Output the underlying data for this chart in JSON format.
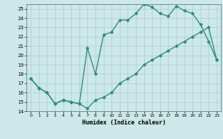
{
  "xlabel": "Humidex (Indice chaleur)",
  "xlim": [
    -0.5,
    23.5
  ],
  "ylim": [
    14,
    25.5
  ],
  "yticks": [
    14,
    15,
    16,
    17,
    18,
    19,
    20,
    21,
    22,
    23,
    24,
    25
  ],
  "xticks": [
    0,
    1,
    2,
    3,
    4,
    5,
    6,
    7,
    8,
    9,
    10,
    11,
    12,
    13,
    14,
    15,
    16,
    17,
    18,
    19,
    20,
    21,
    22,
    23
  ],
  "curve1_x": [
    0,
    1,
    2,
    3,
    4,
    5,
    6,
    7,
    8,
    9,
    10,
    11,
    12,
    13,
    14,
    15,
    16,
    17,
    18,
    19,
    20,
    21,
    22,
    23
  ],
  "curve1_y": [
    17.5,
    16.5,
    16.0,
    14.8,
    15.2,
    15.0,
    14.8,
    14.3,
    15.2,
    15.5,
    16.0,
    17.0,
    17.5,
    18.0,
    19.0,
    19.5,
    20.0,
    20.5,
    21.0,
    21.5,
    22.0,
    22.5,
    23.0,
    19.5
  ],
  "curve2_x": [
    0,
    1,
    2,
    3,
    4,
    5,
    6,
    7,
    8,
    9,
    10,
    11,
    12,
    13,
    14,
    15,
    16,
    17,
    18,
    19,
    20,
    21,
    22,
    23
  ],
  "curve2_y": [
    17.5,
    16.5,
    16.0,
    14.8,
    15.2,
    15.0,
    14.8,
    20.8,
    18.0,
    22.2,
    22.5,
    23.8,
    23.8,
    24.5,
    25.5,
    25.2,
    24.5,
    24.2,
    25.3,
    24.8,
    24.5,
    23.3,
    21.5,
    19.5
  ],
  "line_color": "#2e8b7a",
  "bg_color": "#cce8e8",
  "grid_color": "#aacccc",
  "markersize": 2.5,
  "linewidth": 1.0
}
